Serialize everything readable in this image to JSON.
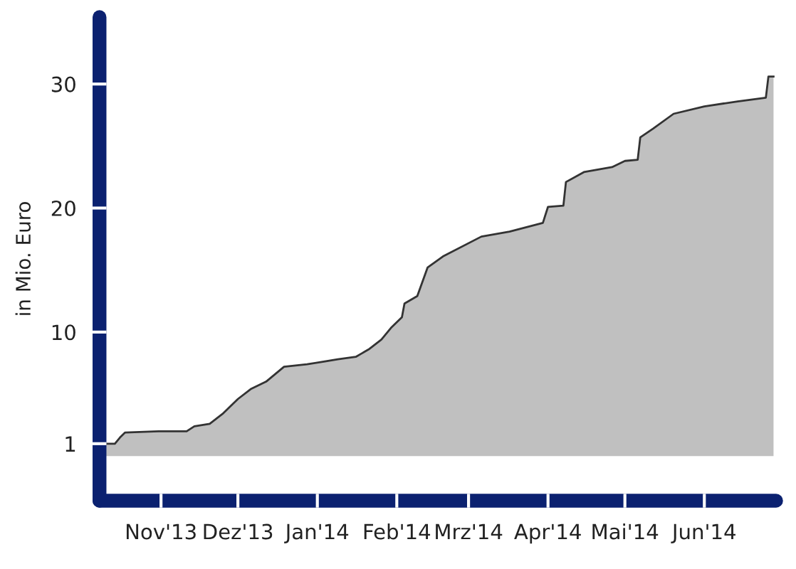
{
  "chart_data": {
    "type": "area",
    "ylabel": "in Mio. Euro",
    "x": [
      "2013-10-08",
      "2013-10-14",
      "2013-10-16",
      "2013-10-18",
      "2013-10-31",
      "2013-11-11",
      "2013-11-14",
      "2013-11-20",
      "2013-11-25",
      "2013-12-01",
      "2013-12-06",
      "2013-12-12",
      "2013-12-19",
      "2013-12-28",
      "2014-01-09",
      "2014-01-16",
      "2014-01-21",
      "2014-01-26",
      "2014-01-30",
      "2014-02-03",
      "2014-02-04",
      "2014-02-09",
      "2014-02-13",
      "2014-02-19",
      "2014-03-06",
      "2014-03-17",
      "2014-03-30",
      "2014-04-01",
      "2014-04-07",
      "2014-04-08",
      "2014-04-15",
      "2014-04-26",
      "2014-05-01",
      "2014-05-06",
      "2014-05-07",
      "2014-05-12",
      "2014-05-20",
      "2014-06-01",
      "2014-06-14",
      "2014-06-25",
      "2014-06-26",
      "2014-06-28"
    ],
    "series": [
      {
        "color": "#c0c0c0",
        "values": [
          1.0,
          1.0,
          1.5,
          1.9,
          2.0,
          2.0,
          2.4,
          2.6,
          3.4,
          4.6,
          5.4,
          6.0,
          7.2,
          7.4,
          7.8,
          8.0,
          8.6,
          9.4,
          10.4,
          11.2,
          12.3,
          12.9,
          15.2,
          16.1,
          17.7,
          18.1,
          18.8,
          20.1,
          20.2,
          22.1,
          22.9,
          23.3,
          23.8,
          23.9,
          25.7,
          26.4,
          27.6,
          28.2,
          28.6,
          28.9,
          30.6,
          30.6
        ]
      }
    ],
    "xlim": [
      "2013-10-08",
      "2014-06-29"
    ],
    "xticks": [
      {
        "value": "2013-11-01",
        "label": "Nov'13"
      },
      {
        "value": "2013-12-01",
        "label": "Dez'13"
      },
      {
        "value": "2014-01-01",
        "label": "Jan'14"
      },
      {
        "value": "2014-02-01",
        "label": "Feb'14"
      },
      {
        "value": "2014-03-01",
        "label": "Mrz'14"
      },
      {
        "value": "2014-04-01",
        "label": "Apr'14"
      },
      {
        "value": "2014-05-01",
        "label": "Mai'14"
      },
      {
        "value": "2014-06-01",
        "label": "Jun'14"
      }
    ],
    "ylim": [
      -3.6,
      35.4
    ],
    "yticks": [
      1,
      10,
      20,
      30
    ],
    "grid": false,
    "legend": false
  }
}
